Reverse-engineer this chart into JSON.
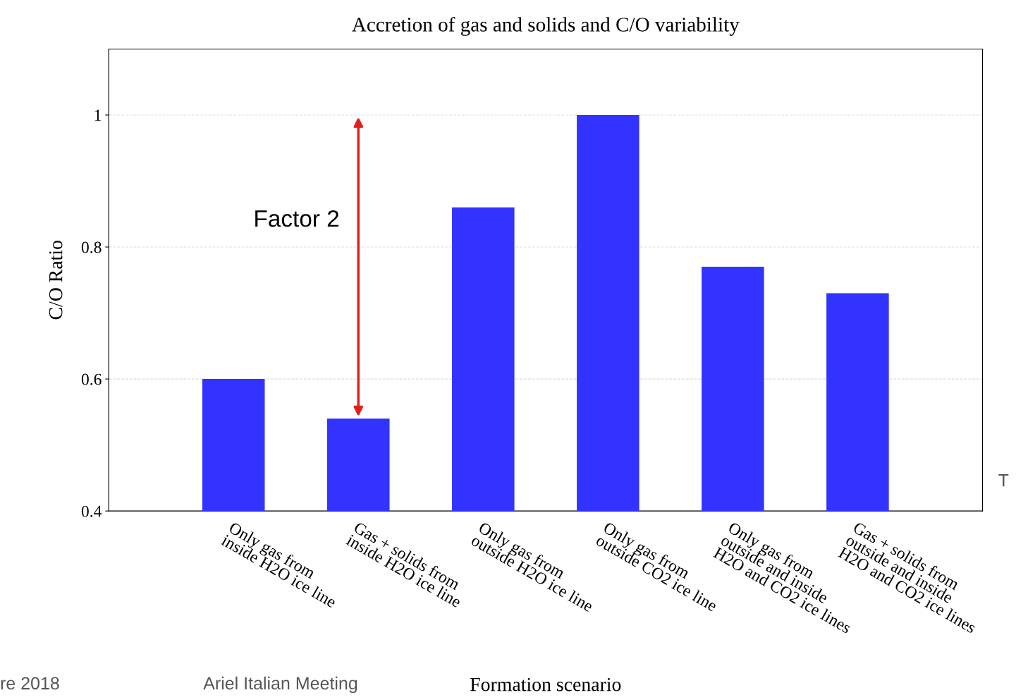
{
  "chart_data": {
    "type": "bar",
    "title": "Accretion of gas and solids and C/O variability",
    "xlabel": "Formation scenario",
    "ylabel": "C/O Ratio",
    "categories": [
      "Only gas from\ninside H2O ice line",
      "Gas + solids from\ninside H2O ice line",
      "Only gas from\noutside H2O ice line",
      "Only gas from\noutside CO2 ice line",
      "Only gas from\noutside and inside\nH2O and CO2 ice lines",
      "Gas + solids from\noutside and inside\nH2O and CO2 ice lines"
    ],
    "values": [
      0.6,
      0.54,
      0.86,
      1.0,
      0.77,
      0.73
    ],
    "color": "#3333ff",
    "ylim": [
      0.4,
      1.1
    ],
    "yticks": [
      0.4,
      0.6,
      0.8,
      1
    ],
    "grid": "y",
    "legend": false,
    "annotations": [
      "Factor 2",
      "re 2018",
      "Ariel Italian Meeting",
      "T"
    ]
  }
}
